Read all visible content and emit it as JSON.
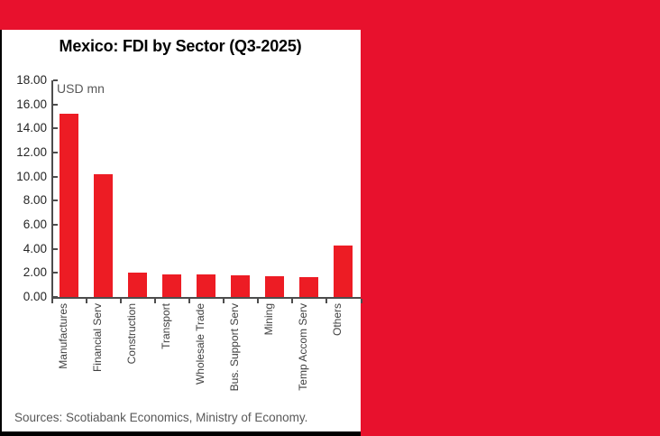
{
  "page": {
    "banner_color": "#e8112d",
    "panel_edge_color": "#000000"
  },
  "chart_data": {
    "type": "bar",
    "title": "Mexico: FDI by Sector (Q3-2025)",
    "unit_label": "USD mn",
    "categories": [
      "Manufactures",
      "Financial Serv",
      "Construction",
      "Transport",
      "Wholesale Trade",
      "Bus. Support Serv",
      "Mining",
      "Temp Accom Serv",
      "Others"
    ],
    "values": [
      15.2,
      10.2,
      2.0,
      1.9,
      1.85,
      1.8,
      1.7,
      1.65,
      4.3
    ],
    "xlabel": "",
    "ylabel": "USD mn",
    "ylim": [
      0,
      18
    ],
    "ytick_step": 2,
    "ytick_labels": [
      "0.00",
      "2.00",
      "4.00",
      "6.00",
      "8.00",
      "10.00",
      "12.00",
      "14.00",
      "16.00",
      "18.00"
    ],
    "bar_color": "#ed1c24",
    "grid": false,
    "legend": "none",
    "source": "Sources: Scotiabank Economics, Ministry of Economy."
  }
}
